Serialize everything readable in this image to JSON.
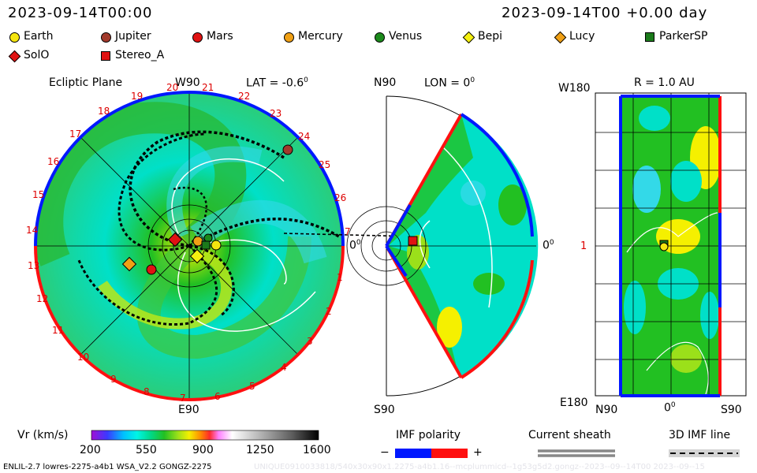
{
  "header": {
    "time_left": "2023-09-14T00:00",
    "time_right": "2023-09-14T00 +0.00 day"
  },
  "legend": [
    {
      "name": "Earth",
      "shape": "circle",
      "color": "#f5e50f"
    },
    {
      "name": "Jupiter",
      "shape": "circle",
      "color": "#a23a2c"
    },
    {
      "name": "Mars",
      "shape": "circle",
      "color": "#e01212"
    },
    {
      "name": "Mercury",
      "shape": "circle",
      "color": "#f0a015"
    },
    {
      "name": "Venus",
      "shape": "circle",
      "color": "#1b8a1b"
    },
    {
      "name": "Bepi",
      "shape": "diamond",
      "color": "#f5f00f"
    },
    {
      "name": "Lucy",
      "shape": "diamond",
      "color": "#f0a015"
    },
    {
      "name": "ParkerSP",
      "shape": "square",
      "color": "#1b7a1b"
    },
    {
      "name": "SolO",
      "shape": "diamond",
      "color": "#e01212"
    },
    {
      "name": "Stereo_A",
      "shape": "square",
      "color": "#e01212"
    }
  ],
  "ecliptic": {
    "title": "Ecliptic Plane",
    "lat_label": "LAT = -0.6",
    "top_label": "W90",
    "bottom_label": "E90",
    "right_label": "0",
    "carrington_numbers": [
      "20",
      "21",
      "22",
      "23",
      "24",
      "25",
      "26",
      "7",
      "1",
      "2",
      "3",
      "4",
      "5",
      "6",
      "7",
      "8",
      "9",
      "10",
      "11",
      "12",
      "13",
      "14",
      "15",
      "16",
      "17",
      "18",
      "19"
    ]
  },
  "meridional": {
    "top_label": "N90",
    "lon_label": "LON = 0",
    "right_label": "0",
    "bottom_label": "S90"
  },
  "map": {
    "title": "R = 1.0 AU",
    "top_label": "W180",
    "mid_label": "1",
    "bottom_label": "E180",
    "x_labels": [
      "N90",
      "0",
      "S90"
    ]
  },
  "colorbar": {
    "label": "Vr (km/s)",
    "ticks": [
      "200",
      "550",
      "900",
      "1250",
      "1600"
    ],
    "colors": [
      "#a00fd6",
      "#3a3aff",
      "#00bfff",
      "#00f5e6",
      "#00d98a",
      "#22c022",
      "#9be01a",
      "#f5f000",
      "#ff8c00",
      "#ff2a2a",
      "#ff80ff",
      "#ffffff",
      "#b0b0b0",
      "#606060",
      "#000000"
    ]
  },
  "imf": {
    "label": "IMF polarity",
    "minus": "−",
    "plus": "+",
    "neg_color": "#0018ff",
    "pos_color": "#ff1010"
  },
  "sheath": {
    "label": "Current sheath"
  },
  "imf3d": {
    "label": "3D IMF line"
  },
  "footer": {
    "model_text": "ENLIL-2.7 lowres-2275-a4b1 WSA_V2.2 GONGZ-2275",
    "watermark": "UNIQUE0910033818/540x30x90x1.2275-a4b1.16--mcplummicd--1g53g5d2.gongz--2023--09--14T00 2023--09--15"
  }
}
